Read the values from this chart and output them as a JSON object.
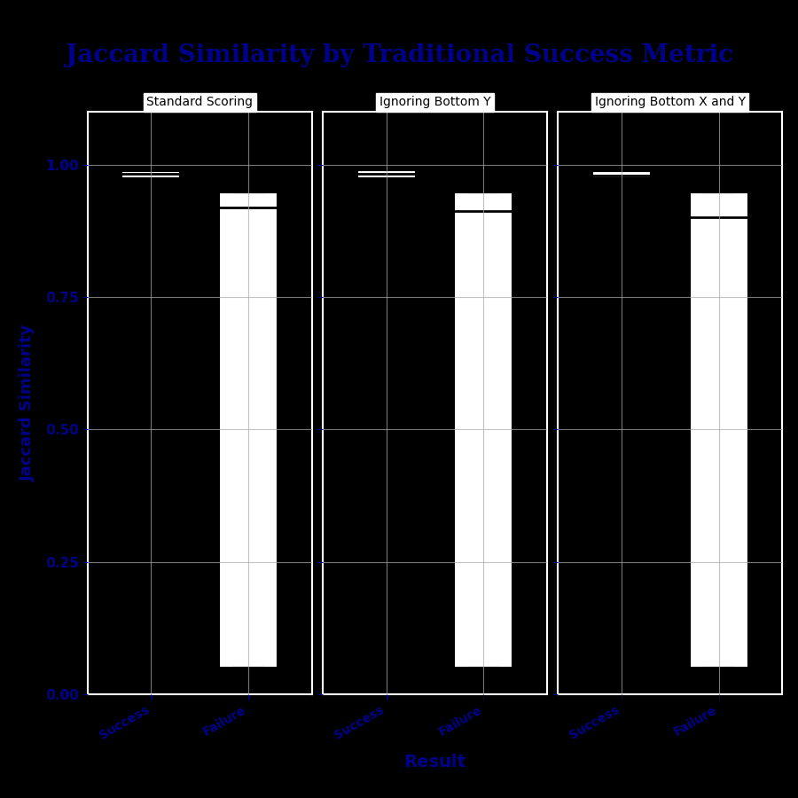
{
  "title": "Jaccard Similarity by Traditional Success Metric",
  "xlabel": "Result",
  "ylabel": "Jaccard Similarity",
  "background_color": "#000000",
  "text_color": "#00008B",
  "grid_color": "#aaaaaa",
  "box_face_color": "#ffffff",
  "box_edge_color": "#000000",
  "median_color": "#000000",
  "whisker_color": "#000000",
  "cap_color": "#000000",
  "facets": [
    "Standard Scoring",
    "Ignoring Bottom Y",
    "Ignoring Bottom X and Y"
  ],
  "categories": [
    "Success",
    "Failure"
  ],
  "ylim": [
    0.0,
    1.1
  ],
  "yticks": [
    0.0,
    0.25,
    0.5,
    0.75,
    1.0
  ],
  "ytick_labels": [
    "0.00",
    "0.25",
    "0.50",
    "0.75",
    "1.00"
  ],
  "box_data": {
    "Standard Scoring": {
      "Success": {
        "q1": 0.975,
        "median": 0.982,
        "q3": 0.988,
        "whislo": 0.968,
        "whishi": 0.995
      },
      "Failure": {
        "q1": 0.05,
        "median": 0.92,
        "q3": 0.948,
        "whislo": 0.05,
        "whishi": 0.948
      }
    },
    "Ignoring Bottom Y": {
      "Success": {
        "q1": 0.975,
        "median": 0.982,
        "q3": 0.989,
        "whislo": 0.968,
        "whishi": 0.996
      },
      "Failure": {
        "q1": 0.05,
        "median": 0.912,
        "q3": 0.948,
        "whislo": 0.05,
        "whishi": 0.948
      }
    },
    "Ignoring Bottom X and Y": {
      "Success": {
        "q1": 0.974,
        "median": 0.98,
        "q3": 0.987,
        "whislo": 0.967,
        "whishi": 0.994
      },
      "Failure": {
        "q1": 0.05,
        "median": 0.9,
        "q3": 0.948,
        "whislo": 0.05,
        "whishi": 0.948
      }
    }
  }
}
